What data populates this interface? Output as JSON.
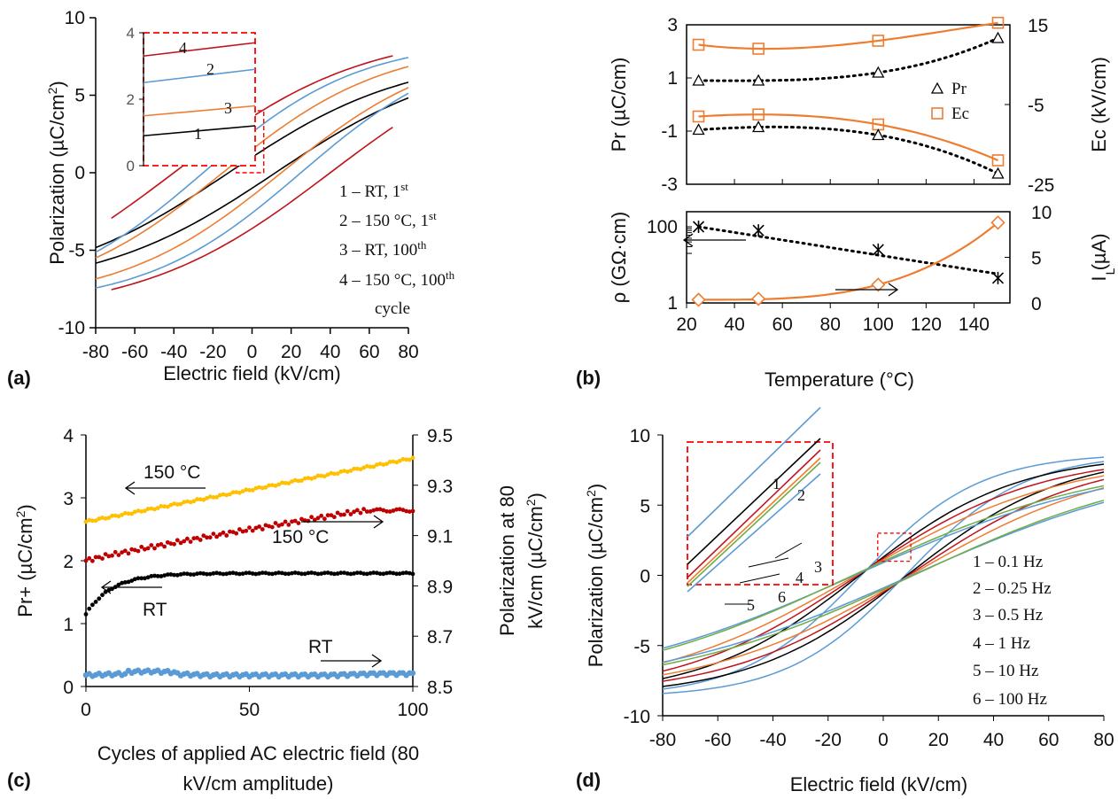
{
  "colors": {
    "red": "#c0141c",
    "blue": "#5b9bd5",
    "orange": "#ed7d31",
    "black": "#000000",
    "yellow": "#ffc000",
    "darkred": "#c00000",
    "green": "#70ad47",
    "inset_box": "#ff0000"
  },
  "chart_data": [
    {
      "id": "a",
      "panel_label": "(a)",
      "type": "line",
      "xlabel": "Electric field (kV/cm)",
      "ylabel": "Polarization (µC/cm²)",
      "ylabel_parts": {
        "main": "Polarization (µC/cm",
        "sup": "2",
        "end": ")"
      },
      "xlim": [
        -80,
        80
      ],
      "ylim": [
        -10,
        10
      ],
      "xticks": [
        "-80",
        "-60",
        "-40",
        "-20",
        "0",
        "20",
        "40",
        "60",
        "80"
      ],
      "yticks": [
        "-10",
        "-5",
        "0",
        "5",
        "10"
      ],
      "legend_lines": [
        "1 – RT, 1",
        "2 – 150 °C, 1",
        "3 – RT, 100",
        "4 – 150 °C, 100",
        "cycle"
      ],
      "legend_sups": [
        "st",
        "st",
        "th",
        "th",
        ""
      ],
      "series": [
        {
          "name": "1",
          "color": "black",
          "Emax": 80,
          "Pmax": 7.6,
          "Pr": 1.0,
          "Ec": 12
        },
        {
          "name": "2",
          "color": "blue",
          "Emax": 80,
          "Pmax": 8.6,
          "Pr": 2.6,
          "Ec": 25
        },
        {
          "name": "3",
          "color": "orange",
          "Emax": 80,
          "Pmax": 8.4,
          "Pr": 1.5,
          "Ec": 15
        },
        {
          "name": "4",
          "color": "red",
          "Emax": 72,
          "Pmax": 9.2,
          "Pr": 3.6,
          "Ec": 40
        }
      ],
      "inset": {
        "yticks": [
          "0",
          "2",
          "4"
        ],
        "labels": [
          "4",
          "2",
          "3",
          "1"
        ],
        "values": [
          {
            "name": "4",
            "y0": 3.3,
            "y1": 3.7
          },
          {
            "name": "2",
            "y0": 2.5,
            "y1": 2.9
          },
          {
            "name": "3",
            "y0": 1.5,
            "y1": 1.8
          },
          {
            "name": "1",
            "y0": 0.9,
            "y1": 1.2
          }
        ]
      }
    },
    {
      "id": "b_top",
      "panel_label": "(b)",
      "type": "line",
      "ylabel": "Pr (µC/cm)",
      "y2label": "Ec (kV/cm)",
      "xlim": [
        20,
        155
      ],
      "ylim": [
        -3,
        3
      ],
      "y2lim": [
        -25,
        15
      ],
      "yticks": [
        "3",
        "1",
        "-1",
        "-3"
      ],
      "y2ticks": [
        "15",
        "-5",
        "-25"
      ],
      "legend": [
        "Pr",
        "Ec"
      ],
      "x": [
        25,
        50,
        100,
        150
      ],
      "Pr_pos": [
        0.9,
        0.9,
        1.2,
        2.5
      ],
      "Pr_neg": [
        -0.95,
        -0.85,
        -1.15,
        -2.6
      ],
      "Ec_pos": [
        10,
        9,
        11,
        15.5
      ],
      "Ec_neg": [
        -8,
        -7.5,
        -10,
        -19
      ]
    },
    {
      "id": "b_bottom",
      "type": "line",
      "xlabel": "Temperature (°C)",
      "ylabel": "ρ (GΩ·cm)",
      "y2label": "I (µA)",
      "y2label_sub": "L",
      "xlim": [
        20,
        155
      ],
      "ylog": [
        1,
        100
      ],
      "y2lim": [
        0,
        10
      ],
      "xticks": [
        "20",
        "40",
        "60",
        "80",
        "100",
        "120",
        "140"
      ],
      "yticks": [
        "100",
        "1"
      ],
      "y2ticks": [
        "10",
        "5",
        "0"
      ],
      "x": [
        25,
        50,
        100,
        150
      ],
      "rho": [
        100,
        80,
        25,
        4.5
      ],
      "IL": [
        0.35,
        0.45,
        2.0,
        8.8
      ]
    },
    {
      "id": "c",
      "panel_label": "(c)",
      "type": "scatter",
      "xlabel": "Cycles of applied AC electric field (80",
      "xlabel2": "kV/cm amplitude)",
      "ylabel": "Pr+ (µC/cm²)",
      "ylabel_parts": {
        "main": "Pr+ (µC/cm",
        "sup": "2",
        "end": ")"
      },
      "y2label": "Polarization at 80",
      "y2label2": "kV/cm (µC/cm²)",
      "y2label2_parts": {
        "main": "kV/cm (µC/cm",
        "sup": "2",
        "end": ")"
      },
      "xlim": [
        0,
        100
      ],
      "ylim": [
        0,
        4
      ],
      "y2lim": [
        8.5,
        9.5
      ],
      "xticks": [
        "0",
        "50",
        "100"
      ],
      "yticks": [
        "0",
        "1",
        "2",
        "3",
        "4"
      ],
      "y2ticks": [
        "8.5",
        "8.7",
        "8.9",
        "9.1",
        "9.3",
        "9.5"
      ],
      "annotations": [
        "150 °C",
        "150 °C",
        "RT",
        "RT"
      ],
      "series": [
        {
          "name": "Pr+ 150 °C",
          "color": "yellow",
          "y_start": 2.62,
          "y_end": 3.63,
          "axis": "left"
        },
        {
          "name": "P80 150 °C",
          "color": "darkred",
          "y_start": 9.0,
          "y_end": 9.2,
          "axis": "right"
        },
        {
          "name": "Pr+ RT",
          "color": "black",
          "y_start": 1.15,
          "y_end": 1.8,
          "axis": "left"
        },
        {
          "name": "P80 RT",
          "color": "blue",
          "y_start": 8.55,
          "y_end": 8.55,
          "axis": "right"
        }
      ]
    },
    {
      "id": "d",
      "panel_label": "(d)",
      "type": "line",
      "xlabel": "Electric field (kV/cm)",
      "ylabel": "Polarization (µC/cm²)",
      "ylabel_parts": {
        "main": "Polarization (µC/cm",
        "sup": "2",
        "end": ")"
      },
      "xlim": [
        -80,
        80
      ],
      "ylim": [
        -10,
        10
      ],
      "xticks": [
        "-80",
        "-60",
        "-40",
        "-20",
        "0",
        "20",
        "40",
        "60",
        "80"
      ],
      "yticks": [
        "-10",
        "-5",
        "0",
        "5",
        "10"
      ],
      "legend_lines": [
        "1 – 0.1 Hz",
        "2 – 0.25 Hz",
        "3 – 0.5 Hz",
        "4 – 1 Hz",
        "5 – 10 Hz",
        "6 – 100 Hz"
      ],
      "series": [
        {
          "name": "1",
          "color": "blue",
          "Pr": 1.6
        },
        {
          "name": "2",
          "color": "black",
          "Pr": 1.3
        },
        {
          "name": "3",
          "color": "red",
          "Pr": 1.2
        },
        {
          "name": "4",
          "color": "orange",
          "Pr": 1.1
        },
        {
          "name": "5",
          "color": "blue",
          "Pr": 0.9
        },
        {
          "name": "6",
          "color": "green",
          "Pr": 1.0
        }
      ],
      "inset": {
        "labels": [
          "1",
          "2",
          "3",
          "4",
          "6",
          "5"
        ]
      }
    }
  ]
}
